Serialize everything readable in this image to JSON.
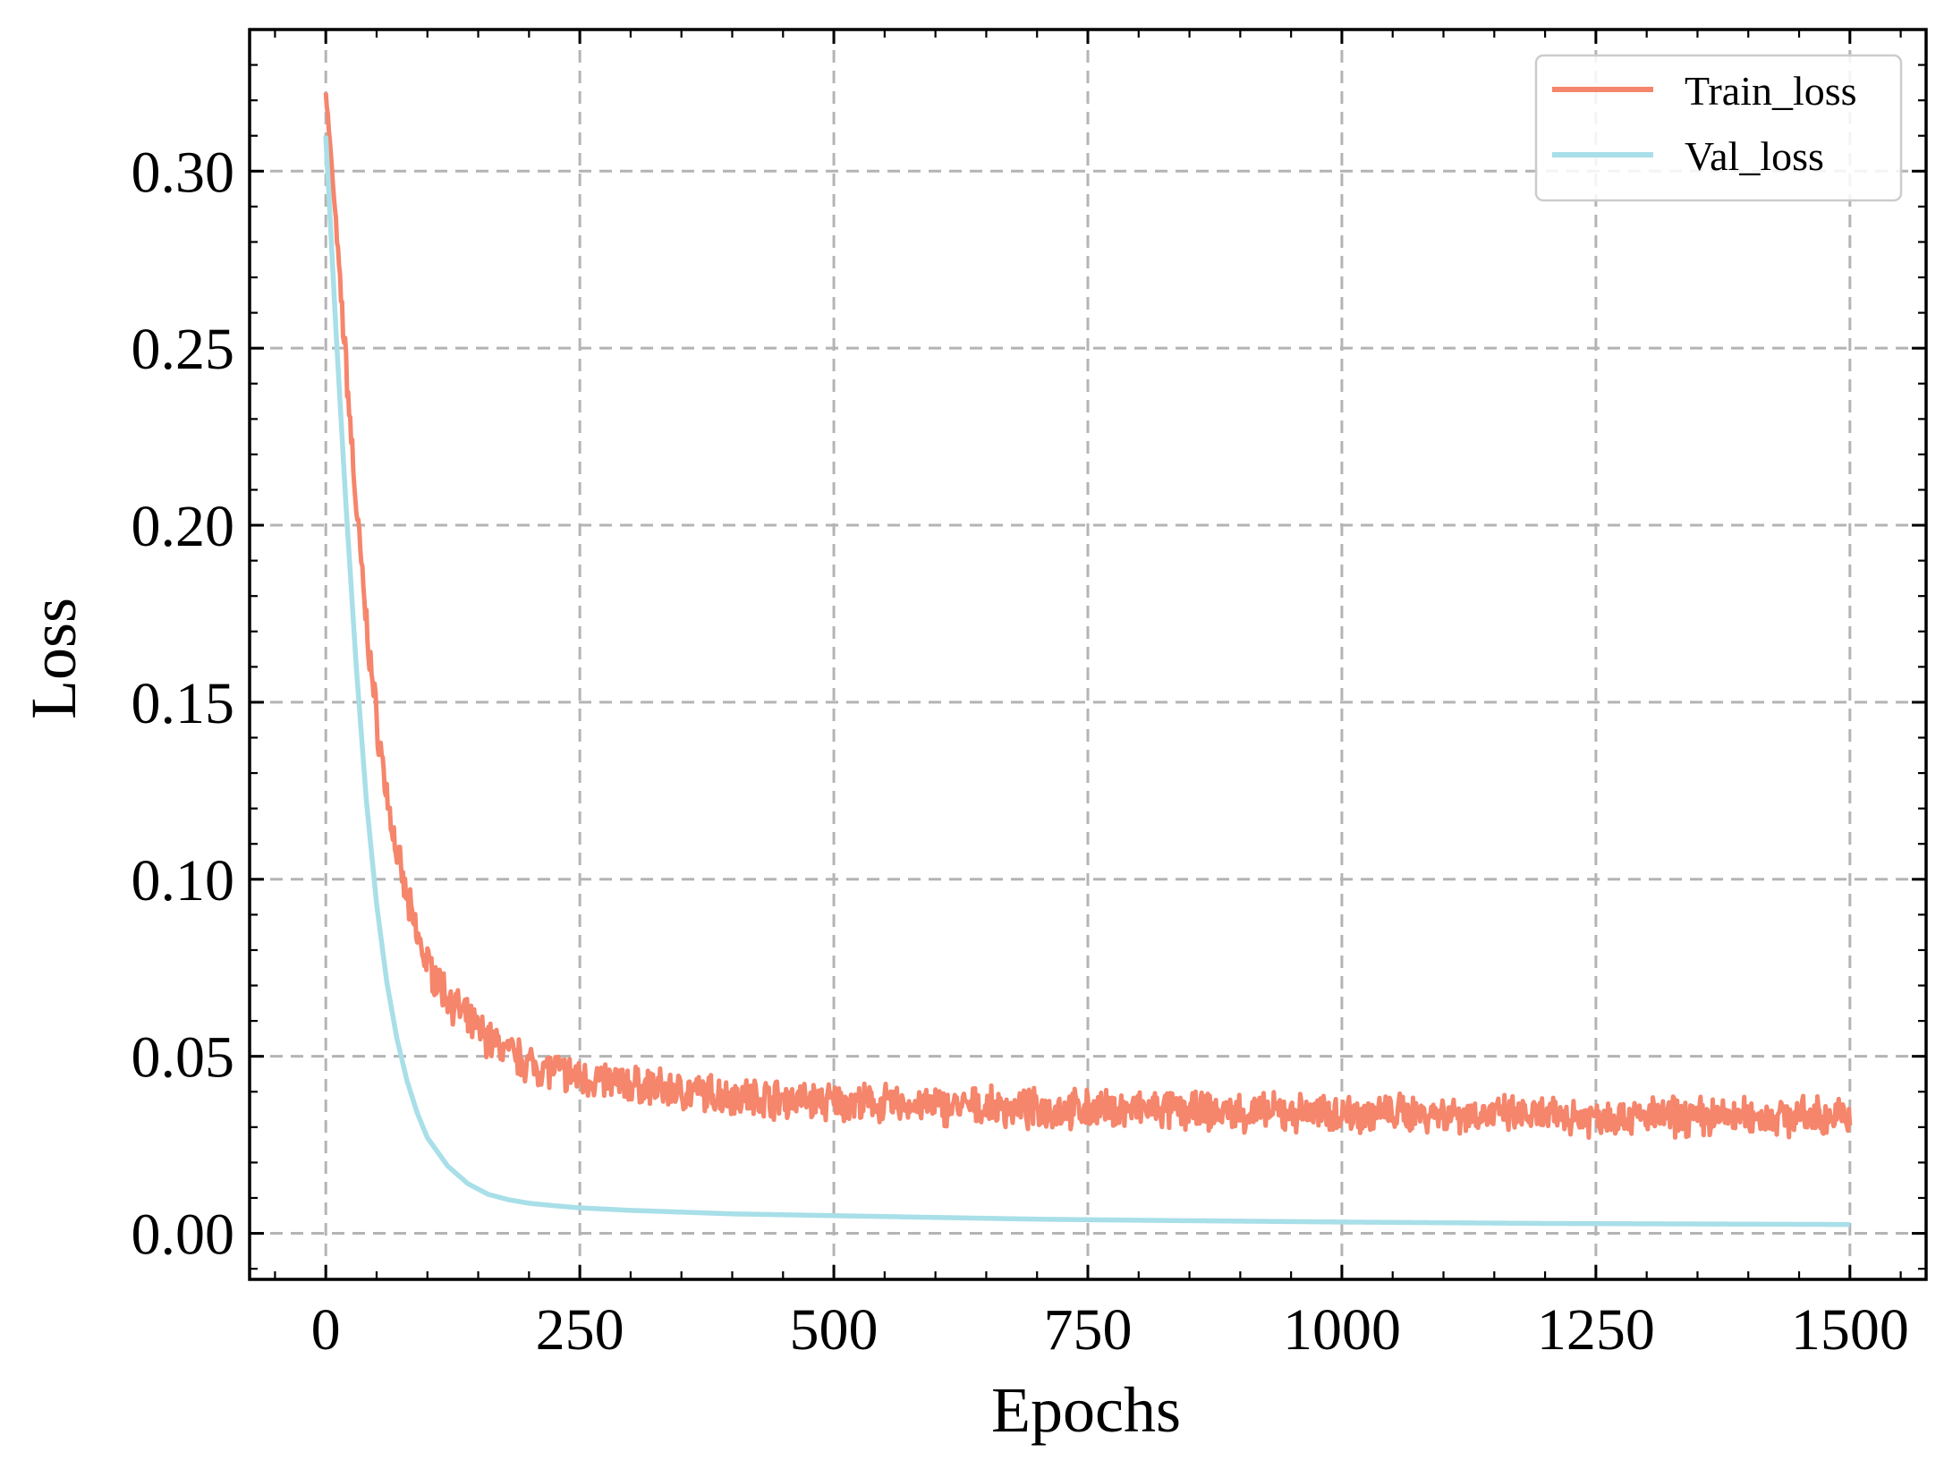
{
  "chart_data": {
    "type": "line",
    "title": "",
    "xlabel": "Epochs",
    "ylabel": "Loss",
    "xlim": [
      -75,
      1575
    ],
    "ylim": [
      -0.013,
      0.34
    ],
    "xticks": [
      0,
      250,
      500,
      750,
      1000,
      1250,
      1500
    ],
    "xtick_labels": [
      "0",
      "250",
      "500",
      "750",
      "1000",
      "1250",
      "1500"
    ],
    "yticks": [
      0.0,
      0.05,
      0.1,
      0.15,
      0.2,
      0.25,
      0.3
    ],
    "ytick_labels": [
      "0.00",
      "0.05",
      "0.10",
      "0.15",
      "0.20",
      "0.25",
      "0.30"
    ],
    "grid": true,
    "grid_style": "dashed",
    "legend_position": "top-right",
    "series": [
      {
        "name": "Train_loss",
        "color": "#f5856b",
        "noisy": true,
        "x": [
          0,
          10,
          20,
          30,
          40,
          50,
          60,
          70,
          80,
          90,
          100,
          120,
          140,
          160,
          180,
          200,
          225,
          250,
          300,
          350,
          400,
          450,
          500,
          600,
          700,
          800,
          900,
          1000,
          1100,
          1200,
          1300,
          1400,
          1500
        ],
        "y": [
          0.323,
          0.285,
          0.245,
          0.205,
          0.172,
          0.145,
          0.124,
          0.107,
          0.094,
          0.084,
          0.076,
          0.067,
          0.06,
          0.055,
          0.051,
          0.048,
          0.046,
          0.044,
          0.042,
          0.04,
          0.039,
          0.038,
          0.037,
          0.036,
          0.035,
          0.035,
          0.034,
          0.034,
          0.034,
          0.033,
          0.033,
          0.033,
          0.033
        ]
      },
      {
        "name": "Val_loss",
        "color": "#a8dfe8",
        "noisy": false,
        "x": [
          0,
          10,
          20,
          30,
          40,
          50,
          60,
          70,
          80,
          90,
          100,
          120,
          140,
          160,
          180,
          200,
          225,
          250,
          300,
          350,
          400,
          500,
          600,
          700,
          800,
          1000,
          1200,
          1400,
          1500
        ],
        "y": [
          0.31,
          0.255,
          0.205,
          0.16,
          0.122,
          0.093,
          0.071,
          0.055,
          0.043,
          0.034,
          0.027,
          0.019,
          0.014,
          0.011,
          0.0095,
          0.0085,
          0.0078,
          0.0072,
          0.0065,
          0.006,
          0.0055,
          0.005,
          0.0045,
          0.004,
          0.0037,
          0.0032,
          0.0028,
          0.0026,
          0.0025
        ]
      }
    ]
  }
}
